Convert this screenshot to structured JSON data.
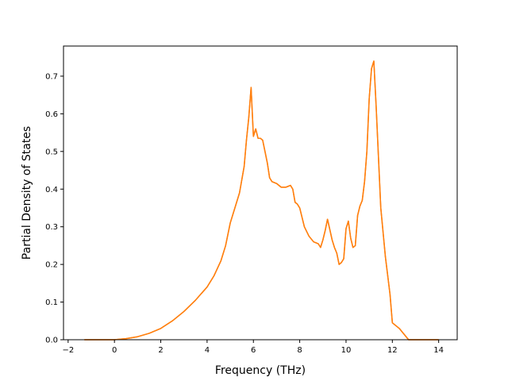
{
  "chart_data": {
    "type": "line",
    "title": "",
    "xlabel": "Frequency (THz)",
    "ylabel": "Partial Density of States",
    "xlim": [
      -2.2,
      14.8
    ],
    "ylim": [
      0.0,
      0.78
    ],
    "xticks": [
      -2,
      0,
      2,
      4,
      6,
      8,
      10,
      12,
      14
    ],
    "yticks": [
      0.0,
      0.1,
      0.2,
      0.3,
      0.4,
      0.5,
      0.6,
      0.7
    ],
    "xtick_labels": [
      "−2",
      "0",
      "2",
      "4",
      "6",
      "8",
      "10",
      "12",
      "14"
    ],
    "ytick_labels": [
      "0.0",
      "0.1",
      "0.2",
      "0.3",
      "0.4",
      "0.5",
      "0.6",
      "0.7"
    ],
    "grid": false,
    "legend": "none",
    "series": [
      {
        "color": "#ff7f0e",
        "x": [
          -1.3,
          -0.5,
          0.0,
          0.5,
          1.0,
          1.5,
          2.0,
          2.5,
          3.0,
          3.5,
          4.0,
          4.3,
          4.6,
          4.8,
          4.9,
          5.0,
          5.2,
          5.4,
          5.6,
          5.7,
          5.8,
          5.9,
          6.0,
          6.1,
          6.2,
          6.3,
          6.4,
          6.5,
          6.6,
          6.7,
          6.8,
          7.0,
          7.2,
          7.4,
          7.6,
          7.7,
          7.8,
          7.9,
          8.0,
          8.2,
          8.4,
          8.6,
          8.8,
          8.9,
          9.0,
          9.1,
          9.2,
          9.4,
          9.5,
          9.6,
          9.7,
          9.8,
          9.9,
          10.0,
          10.1,
          10.2,
          10.3,
          10.4,
          10.5,
          10.6,
          10.7,
          10.8,
          10.9,
          11.0,
          11.1,
          11.2,
          11.3,
          11.5,
          11.7,
          11.9,
          12.0,
          12.1,
          12.3,
          12.5,
          12.7,
          13.0,
          13.5,
          14.0
        ],
        "y": [
          0.0,
          0.0,
          0.0,
          0.003,
          0.008,
          0.017,
          0.03,
          0.05,
          0.075,
          0.105,
          0.14,
          0.17,
          0.21,
          0.25,
          0.28,
          0.31,
          0.35,
          0.39,
          0.46,
          0.53,
          0.59,
          0.67,
          0.54,
          0.56,
          0.535,
          0.535,
          0.53,
          0.5,
          0.47,
          0.43,
          0.42,
          0.415,
          0.405,
          0.405,
          0.41,
          0.4,
          0.365,
          0.36,
          0.35,
          0.3,
          0.275,
          0.26,
          0.255,
          0.245,
          0.265,
          0.29,
          0.32,
          0.265,
          0.245,
          0.23,
          0.2,
          0.205,
          0.215,
          0.295,
          0.315,
          0.27,
          0.245,
          0.25,
          0.33,
          0.355,
          0.37,
          0.42,
          0.5,
          0.64,
          0.72,
          0.74,
          0.62,
          0.35,
          0.22,
          0.12,
          0.045,
          0.04,
          0.03,
          0.015,
          0.0,
          0.0,
          0.0,
          0.0
        ]
      },
      {
        "color": "#ff7f0e",
        "x": [
          -1.3,
          -0.5,
          0.0,
          0.5,
          1.0,
          1.5,
          2.0,
          2.5,
          3.0,
          3.5,
          4.0,
          4.3,
          4.6,
          4.8,
          4.9,
          5.0,
          5.2,
          5.4,
          5.6,
          5.7,
          5.8,
          5.9,
          6.0,
          6.1,
          6.2,
          6.3,
          6.4,
          6.5,
          6.6,
          6.7,
          6.8,
          7.0,
          7.2,
          7.4,
          7.6,
          7.7,
          7.8,
          7.9,
          8.0,
          8.2,
          8.4,
          8.6,
          8.8,
          8.9,
          9.0,
          9.1,
          9.2,
          9.4,
          9.5,
          9.6,
          9.7,
          9.8,
          9.9,
          10.0,
          10.1,
          10.2,
          10.3,
          10.4,
          10.5,
          10.6,
          10.7,
          10.8,
          10.9,
          11.0,
          11.1,
          11.2,
          11.3,
          11.5,
          11.7,
          11.9,
          12.0,
          12.1,
          12.3,
          12.5,
          12.7,
          13.0,
          13.5,
          14.0
        ],
        "y": [
          0.0,
          0.0,
          0.0,
          0.003,
          0.008,
          0.017,
          0.03,
          0.05,
          0.075,
          0.105,
          0.14,
          0.17,
          0.21,
          0.25,
          0.28,
          0.31,
          0.35,
          0.39,
          0.46,
          0.53,
          0.59,
          0.67,
          0.54,
          0.56,
          0.535,
          0.535,
          0.53,
          0.5,
          0.47,
          0.43,
          0.42,
          0.415,
          0.405,
          0.405,
          0.41,
          0.4,
          0.365,
          0.36,
          0.35,
          0.3,
          0.275,
          0.26,
          0.255,
          0.245,
          0.265,
          0.29,
          0.32,
          0.265,
          0.245,
          0.23,
          0.2,
          0.205,
          0.215,
          0.295,
          0.315,
          0.27,
          0.245,
          0.25,
          0.33,
          0.355,
          0.37,
          0.42,
          0.5,
          0.64,
          0.72,
          0.74,
          0.62,
          0.35,
          0.22,
          0.12,
          0.045,
          0.04,
          0.03,
          0.015,
          0.0,
          0.0,
          0.0,
          0.0
        ]
      }
    ]
  }
}
